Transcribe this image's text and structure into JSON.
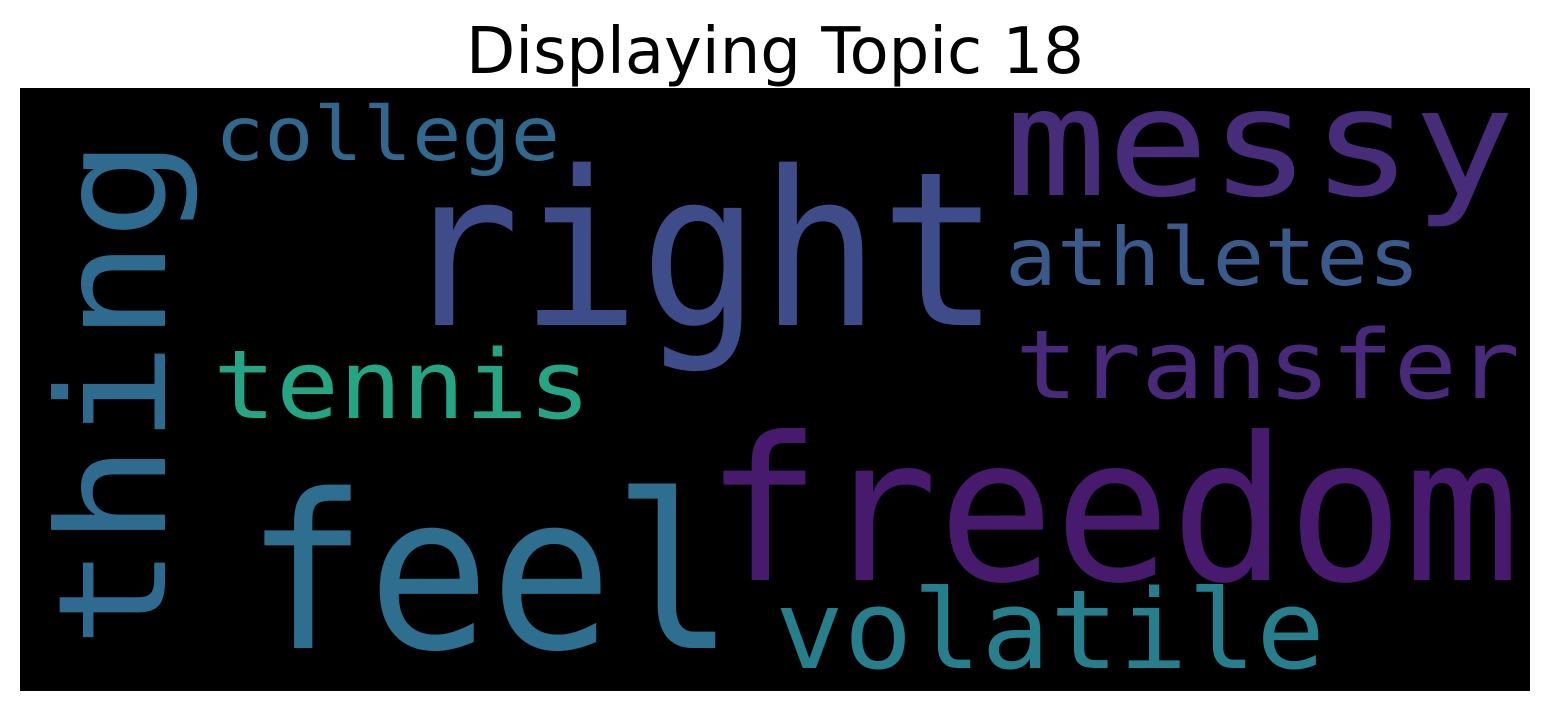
{
  "chart_data": {
    "type": "wordcloud",
    "title": "Displaying Topic 18",
    "background": "#000000",
    "words": [
      {
        "text": "right",
        "color": "#3e4c8a",
        "orientation": "horizontal"
      },
      {
        "text": "feel",
        "color": "#2e6e8e",
        "orientation": "horizontal"
      },
      {
        "text": "freedom",
        "color": "#471a6e",
        "orientation": "horizontal"
      },
      {
        "text": "messy",
        "color": "#472c7a",
        "orientation": "horizontal"
      },
      {
        "text": "thing",
        "color": "#2f6b8e",
        "orientation": "vertical"
      },
      {
        "text": "volatile",
        "color": "#277f8e",
        "orientation": "horizontal"
      },
      {
        "text": "transfer",
        "color": "#48297a",
        "orientation": "horizontal"
      },
      {
        "text": "athletes",
        "color": "#3a5a8c",
        "orientation": "horizontal"
      },
      {
        "text": "tennis",
        "color": "#25a584",
        "orientation": "horizontal"
      },
      {
        "text": "college",
        "color": "#31688e",
        "orientation": "horizontal"
      }
    ]
  }
}
